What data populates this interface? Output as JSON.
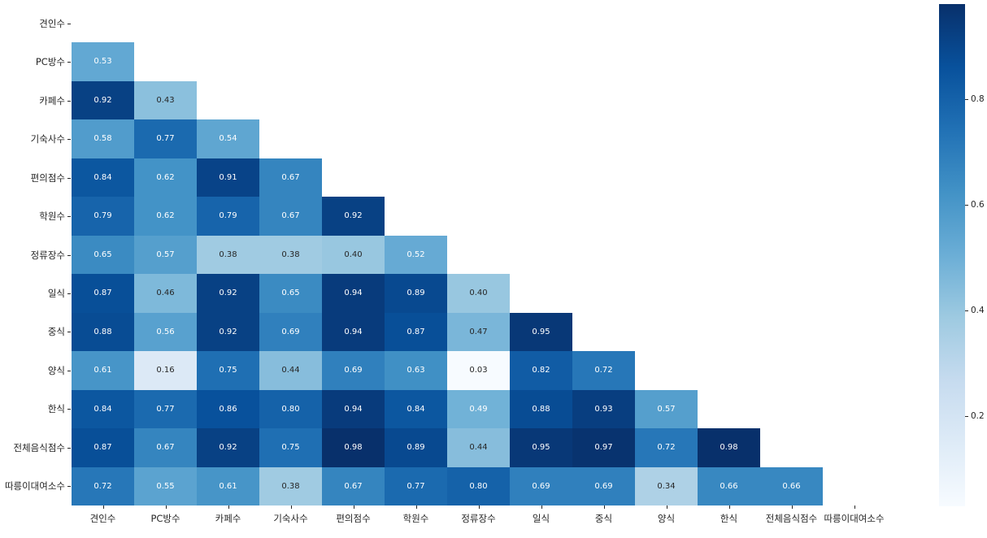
{
  "chart_data": {
    "type": "heatmap",
    "title": "",
    "xlabel": "",
    "ylabel": "",
    "categories": [
      "견인수",
      "PC방수",
      "카페수",
      "기숙사수",
      "편의점수",
      "학원수",
      "정류장수",
      "일식",
      "중식",
      "양식",
      "한식",
      "전체음식점수",
      "따릉이대여소수"
    ],
    "mask": "upper-triangle-including-diagonal",
    "matrix": [
      [
        null,
        null,
        null,
        null,
        null,
        null,
        null,
        null,
        null,
        null,
        null,
        null,
        null
      ],
      [
        0.53,
        null,
        null,
        null,
        null,
        null,
        null,
        null,
        null,
        null,
        null,
        null,
        null
      ],
      [
        0.92,
        0.43,
        null,
        null,
        null,
        null,
        null,
        null,
        null,
        null,
        null,
        null,
        null
      ],
      [
        0.58,
        0.77,
        0.54,
        null,
        null,
        null,
        null,
        null,
        null,
        null,
        null,
        null,
        null
      ],
      [
        0.84,
        0.62,
        0.91,
        0.67,
        null,
        null,
        null,
        null,
        null,
        null,
        null,
        null,
        null
      ],
      [
        0.79,
        0.62,
        0.79,
        0.67,
        0.92,
        null,
        null,
        null,
        null,
        null,
        null,
        null,
        null
      ],
      [
        0.65,
        0.57,
        0.38,
        0.38,
        0.4,
        0.52,
        null,
        null,
        null,
        null,
        null,
        null,
        null
      ],
      [
        0.87,
        0.46,
        0.92,
        0.65,
        0.94,
        0.89,
        0.4,
        null,
        null,
        null,
        null,
        null,
        null
      ],
      [
        0.88,
        0.56,
        0.92,
        0.69,
        0.94,
        0.87,
        0.47,
        0.95,
        null,
        null,
        null,
        null,
        null
      ],
      [
        0.61,
        0.16,
        0.75,
        0.44,
        0.69,
        0.63,
        0.03,
        0.82,
        0.72,
        null,
        null,
        null,
        null
      ],
      [
        0.84,
        0.77,
        0.86,
        0.8,
        0.94,
        0.84,
        0.49,
        0.88,
        0.93,
        0.57,
        null,
        null,
        null
      ],
      [
        0.87,
        0.67,
        0.92,
        0.75,
        0.98,
        0.89,
        0.44,
        0.95,
        0.97,
        0.72,
        0.98,
        null,
        null
      ],
      [
        0.72,
        0.55,
        0.61,
        0.38,
        0.67,
        0.77,
        0.8,
        0.69,
        0.69,
        0.34,
        0.66,
        0.66,
        null
      ]
    ],
    "value_format_decimals": 2,
    "vmin": 0.03,
    "vmax": 0.98,
    "colormap": "Blues",
    "colormap_stops": [
      "#f7fbff",
      "#deebf7",
      "#c6dbef",
      "#9ecae1",
      "#6baed6",
      "#4292c6",
      "#2171b5",
      "#08519c",
      "#08306b"
    ],
    "annotation_text_color_light_cell": "#262626",
    "annotation_text_color_dark_cell": "#ffffff",
    "tick_label_color": "#262626",
    "background": "#ffffff",
    "grid": false,
    "legend_position": "none",
    "colorbar": {
      "position": "right",
      "ticks": [
        "0.8",
        "0.6",
        "0.4",
        "0.2"
      ],
      "tick_values": [
        0.8,
        0.6,
        0.4,
        0.2
      ]
    }
  }
}
